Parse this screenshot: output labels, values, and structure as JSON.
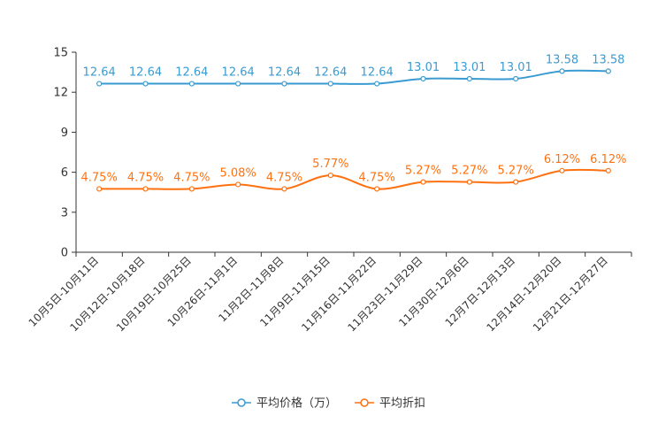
{
  "chart_data": {
    "type": "line",
    "title": "",
    "xlabel": "",
    "ylabel": "",
    "ylim": [
      0,
      15
    ],
    "yticks": [
      0,
      3,
      6,
      9,
      12,
      15
    ],
    "grid": false,
    "legend_position": "bottom",
    "categories": [
      "10月5日-10月11日",
      "10月12日-10月18日",
      "10月19日-10月25日",
      "10月26日-11月1日",
      "11月2日-11月8日",
      "11月9日-11月15日",
      "11月16日-11月22日",
      "11月23日-11月29日",
      "11月30日-12月6日",
      "12月7日-12月13日",
      "12月14日-12月20日",
      "12月21日-12月27日"
    ],
    "series": [
      {
        "name": "平均价格（万）",
        "color": "#3a9bd1",
        "values": [
          12.64,
          12.64,
          12.64,
          12.64,
          12.64,
          12.64,
          12.64,
          13.01,
          13.01,
          13.01,
          13.58,
          13.58
        ],
        "labels": [
          "12.64",
          "12.64",
          "12.64",
          "12.64",
          "12.64",
          "12.64",
          "12.64",
          "13.01",
          "13.01",
          "13.01",
          "13.58",
          "13.58"
        ]
      },
      {
        "name": "平均折扣",
        "color": "#ff7110",
        "values": [
          4.75,
          4.75,
          4.75,
          5.08,
          4.75,
          5.77,
          4.75,
          5.27,
          5.27,
          5.27,
          6.12,
          6.12
        ],
        "labels": [
          "4.75%",
          "4.75%",
          "4.75%",
          "5.08%",
          "4.75%",
          "5.77%",
          "4.75%",
          "5.27%",
          "5.27%",
          "5.27%",
          "6.12%",
          "6.12%"
        ]
      }
    ]
  }
}
